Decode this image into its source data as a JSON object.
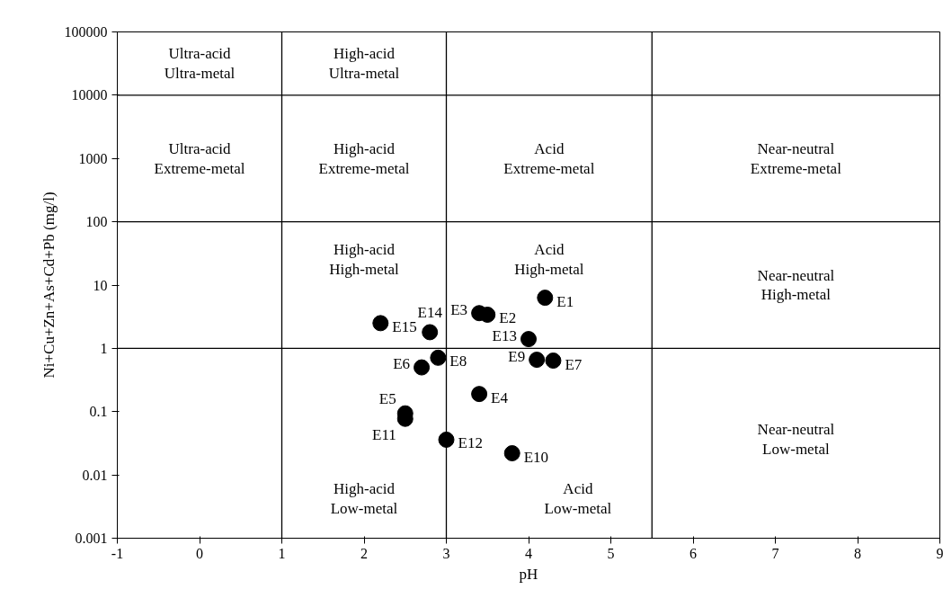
{
  "chart_data": {
    "type": "scatter",
    "xlabel": "pH",
    "ylabel": "Ni+Cu+Zn+As+Cd+Pb (mg/l)",
    "log": "y",
    "grid": false,
    "marker": "circle",
    "series": [
      {
        "color": "#000000",
        "x": [
          4.2,
          3.5,
          3.4,
          3.4,
          2.5,
          2.7,
          4.3,
          2.9,
          4.1,
          3.8,
          2.5,
          3.0,
          4.0,
          2.8,
          2.2
        ],
        "values": [
          6.3,
          3.4,
          3.6,
          0.19,
          0.094,
          0.5,
          0.64,
          0.71,
          0.66,
          0.022,
          0.077,
          0.036,
          1.4,
          1.8,
          2.5
        ]
      }
    ],
    "xlim": [
      -1,
      9
    ],
    "xticks": [
      -1,
      0,
      1,
      2,
      3,
      4,
      5,
      6,
      7,
      8,
      9
    ],
    "ylim": [
      0.001,
      100000
    ],
    "yticks": [
      0.001,
      0.01,
      0.1,
      1,
      10,
      100,
      1000,
      10000,
      100000
    ],
    "ref_lines": [
      {
        "axis": "x",
        "value": 1,
        "color": "#000000"
      },
      {
        "axis": "x",
        "value": 3,
        "color": "#000000"
      },
      {
        "axis": "x",
        "value": 5.5,
        "color": "#000000"
      },
      {
        "axis": "y",
        "value": 10000,
        "color": "#000000"
      },
      {
        "axis": "y",
        "value": 100,
        "color": "#000000"
      },
      {
        "axis": "y",
        "value": 1,
        "color": "#000000"
      }
    ],
    "annotations": [
      {
        "text": "E1",
        "x": 4.2,
        "y": 6.3
      },
      {
        "text": "E2",
        "x": 3.5,
        "y": 3.4
      },
      {
        "text": "E3",
        "x": 3.4,
        "y": 3.6
      },
      {
        "text": "E4",
        "x": 3.4,
        "y": 0.19
      },
      {
        "text": "E5",
        "x": 2.5,
        "y": 0.094
      },
      {
        "text": "E6",
        "x": 2.7,
        "y": 0.5
      },
      {
        "text": "E7",
        "x": 4.3,
        "y": 0.64
      },
      {
        "text": "E8",
        "x": 2.9,
        "y": 0.71
      },
      {
        "text": "E9",
        "x": 4.1,
        "y": 0.66
      },
      {
        "text": "E10",
        "x": 3.8,
        "y": 0.022
      },
      {
        "text": "E11",
        "x": 2.5,
        "y": 0.077
      },
      {
        "text": "E12",
        "x": 3.0,
        "y": 0.036
      },
      {
        "text": "E13",
        "x": 4.0,
        "y": 1.4
      },
      {
        "text": "E14",
        "x": 2.8,
        "y": 1.8
      },
      {
        "text": "E15",
        "x": 2.2,
        "y": 2.5
      },
      "Ultra-acid\nUltra-metal",
      "High-acid\nUltra-metal",
      "Ultra-acid\nExtreme-metal",
      "High-acid\nExtreme-metal",
      "Acid\nExtreme-metal",
      "Near-neutral\nExtreme-metal",
      "High-acid\nHigh-metal",
      "Acid\nHigh-metal",
      "Near-neutral\nHigh-metal",
      "High-acid\nLow-metal",
      "Acid\nLow-metal",
      "Near-neutral\nLow-metal"
    ]
  }
}
